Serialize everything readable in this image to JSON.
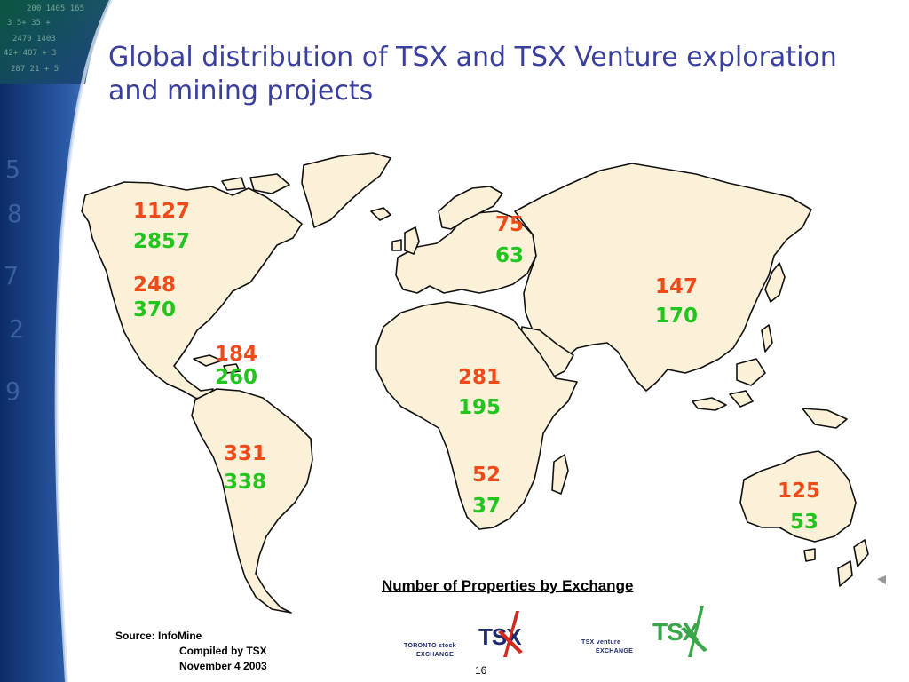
{
  "title": "Global distribution of TSX and TSX Venture exploration and mining projects",
  "regions": [
    {
      "name": "canada",
      "tsx": "1127",
      "venture": "2857"
    },
    {
      "name": "usa",
      "tsx": "248",
      "venture": "370"
    },
    {
      "name": "central-america",
      "tsx": "184",
      "venture": "260"
    },
    {
      "name": "south-america",
      "tsx": "331",
      "venture": "338"
    },
    {
      "name": "europe",
      "tsx": "75",
      "venture": "63"
    },
    {
      "name": "asia",
      "tsx": "147",
      "venture": "170"
    },
    {
      "name": "africa",
      "tsx": "281",
      "venture": "195"
    },
    {
      "name": "southern-africa",
      "tsx": "52",
      "venture": "37"
    },
    {
      "name": "australia",
      "tsx": "125",
      "venture": "53"
    }
  ],
  "caption": "Number of Properties by Exchange",
  "source": {
    "line1": "Source:  InfoMine",
    "line2": "Compiled by TSX",
    "line3": "November 4 2003"
  },
  "page_number": "16",
  "logos": {
    "tsx_line1": "TORONTO stock",
    "tsx_line2": "EXCHANGE",
    "tsx_mark": "TSX",
    "venture_line1": "TSX venture",
    "venture_line2": "EXCHANGE",
    "venture_mark": "TSX"
  },
  "colors": {
    "title": "#3a3f9e",
    "tsx_numbers": "#ee4a1a",
    "venture_numbers": "#22c51e",
    "land": "#fbf1d8",
    "band": "#1b3f7e"
  }
}
